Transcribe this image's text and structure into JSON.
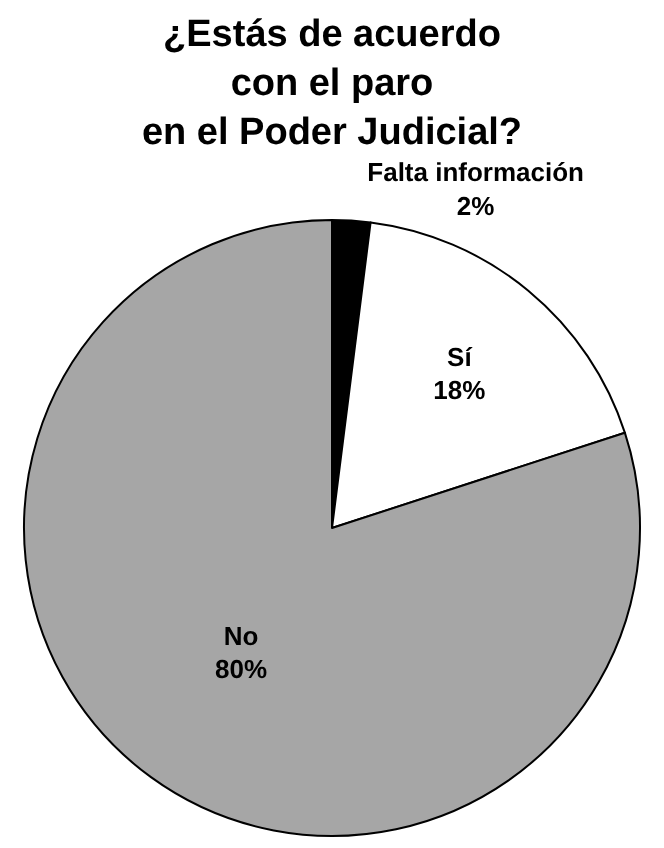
{
  "chart_data": {
    "type": "pie",
    "title": "¿Estás de acuerdo\ncon el paro\nen el Poder Judicial?",
    "categories": [
      "Falta información",
      "Sí",
      "No"
    ],
    "values": [
      2,
      18,
      80
    ],
    "value_labels": [
      "2%",
      "18%",
      "80%"
    ],
    "colors": [
      "#000000",
      "#ffffff",
      "#a6a6a6"
    ],
    "legend": false
  }
}
